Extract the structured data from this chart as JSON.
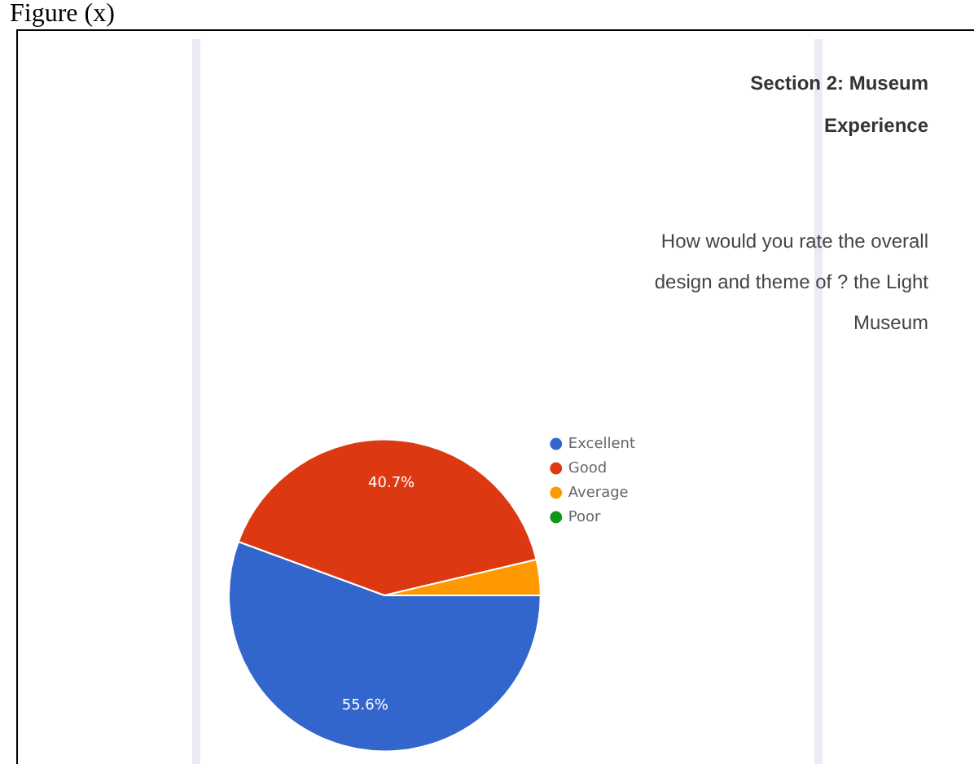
{
  "chart_data": {
    "type": "pie",
    "title": "Section 2: Museum Experience",
    "subtitle": "How would you rate the overall design and theme of ? the Light Museum",
    "annotations": [
      "Figure (x)"
    ],
    "categories": [
      "Excellent",
      "Good",
      "Average",
      "Poor"
    ],
    "values": [
      55.6,
      40.7,
      3.7,
      0
    ],
    "value_labels": [
      "55.6%",
      "40.7%",
      null,
      null
    ],
    "colors": [
      "#3366cc",
      "#dc3912",
      "#ff9900",
      "#109618"
    ],
    "legend": "right"
  }
}
